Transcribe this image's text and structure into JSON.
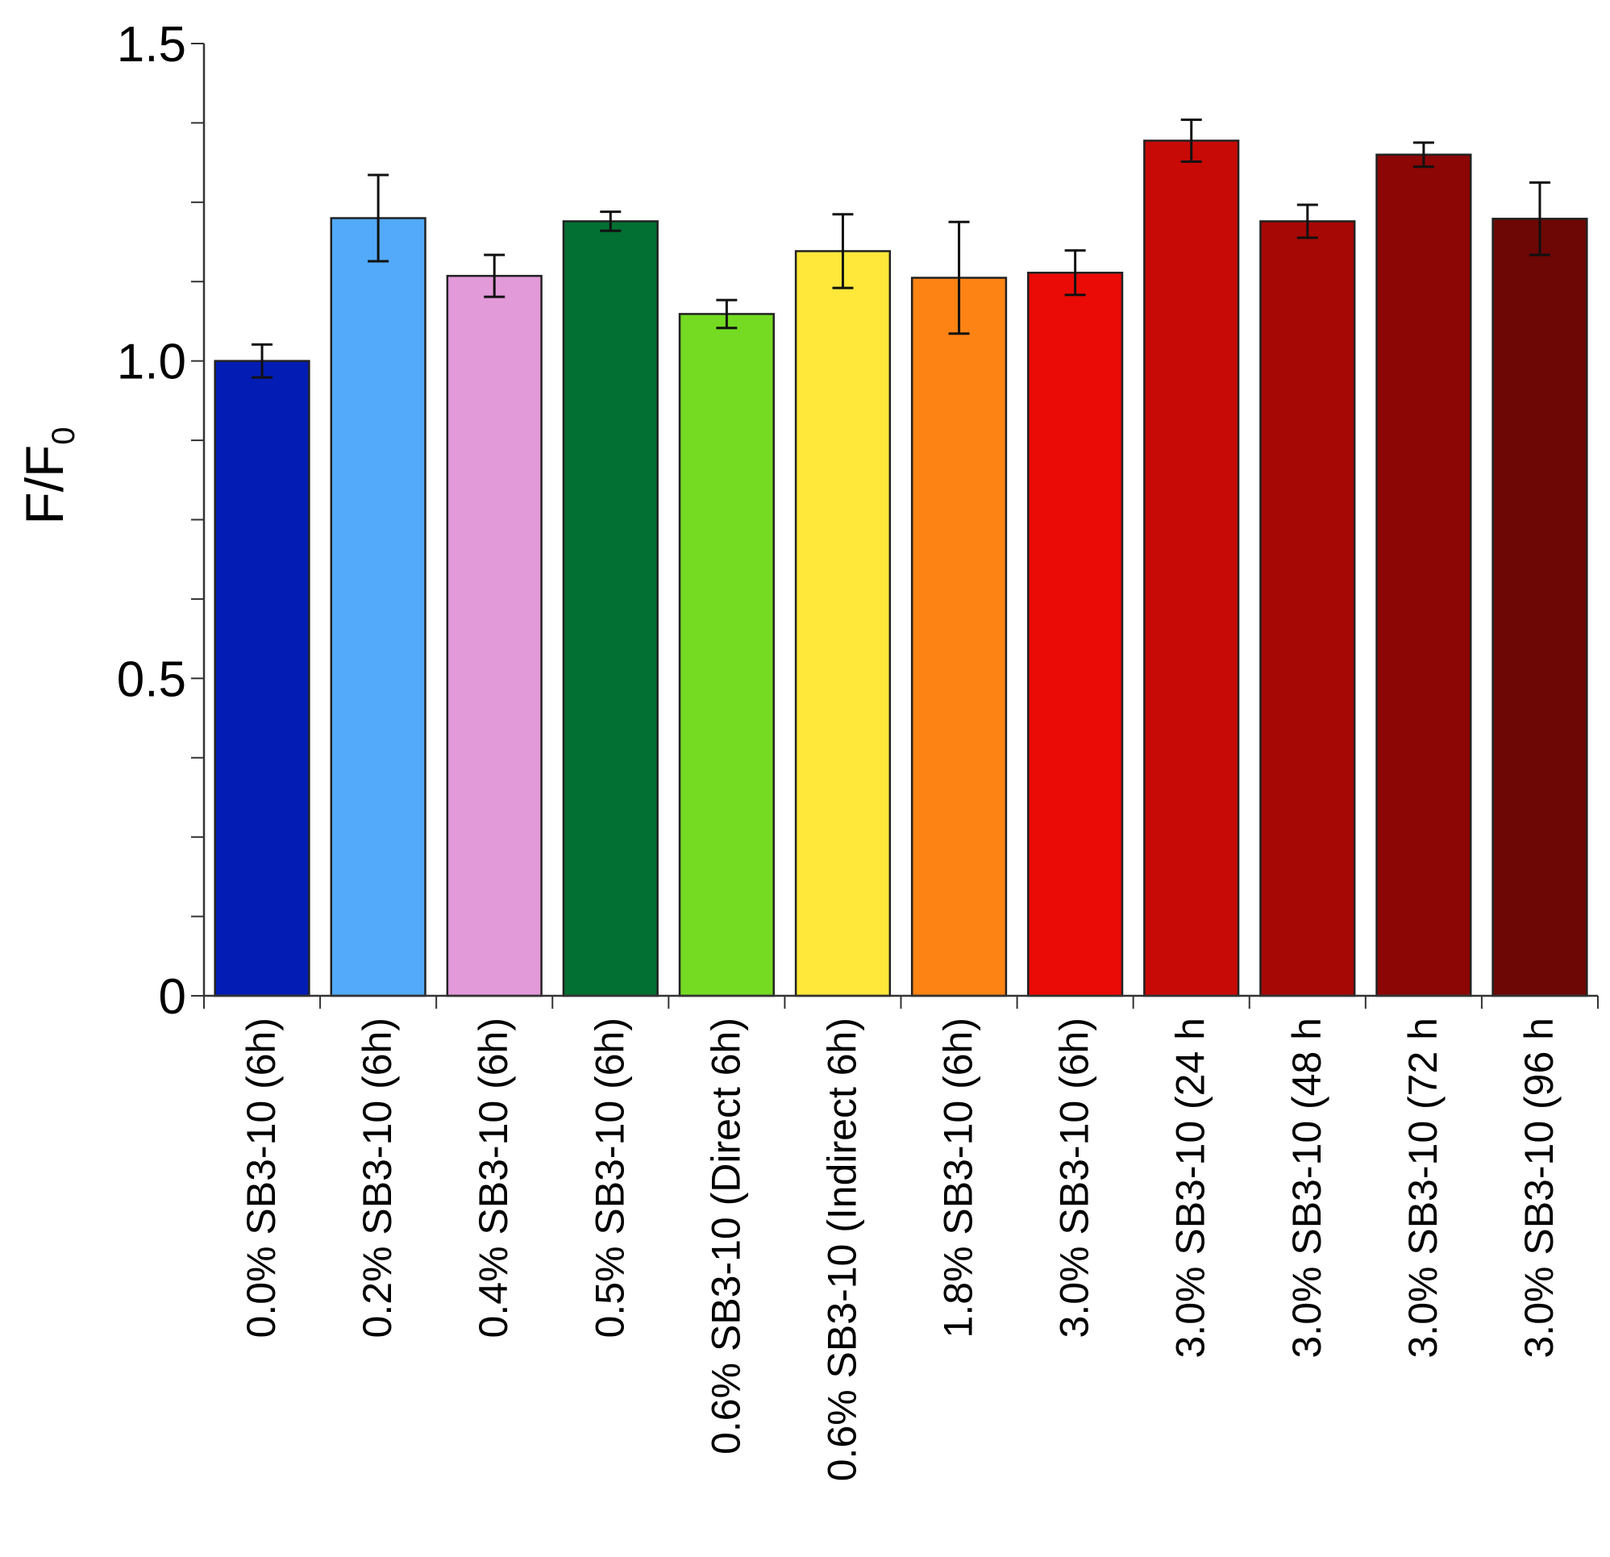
{
  "chart_data": {
    "type": "bar",
    "title": "",
    "xlabel": "",
    "ylabel": "F/F",
    "ylabel_subscript": "0",
    "ylim": [
      0,
      1.5
    ],
    "yticks": [
      0,
      0.5,
      1.0,
      1.5
    ],
    "ytick_labels": [
      "0",
      "0.5",
      "1.0",
      "1.5"
    ],
    "minor_tick_step": 0.125,
    "grid": false,
    "categories": [
      "0.0% SB3-10 (6h)",
      "0.2% SB3-10 (6h)",
      "0.4% SB3-10 (6h)",
      "0.5% SB3-10 (6h)",
      "0.6% SB3-10 (Direct 6h)",
      "0.6% SB3-10 (Indirect 6h)",
      "1.8% SB3-10 (6h)",
      "3.0% SB3-10 (6h)",
      "3.0% SB3-10 (24 h",
      "3.0% SB3-10 (48 h",
      "3.0% SB3-10 (72 h",
      "3.0% SB3-10 (96 h"
    ],
    "values": [
      1.0,
      1.225,
      1.134,
      1.22,
      1.074,
      1.173,
      1.131,
      1.139,
      1.347,
      1.22,
      1.325,
      1.224
    ],
    "errors": [
      0.026,
      0.068,
      0.033,
      0.015,
      0.022,
      0.058,
      0.088,
      0.035,
      0.033,
      0.026,
      0.019,
      0.057
    ],
    "colors": [
      "#031CB3",
      "#53AAFB",
      "#E29AD9",
      "#026F33",
      "#74DB22",
      "#FFE83A",
      "#FD8314",
      "#EA0A06",
      "#C80A07",
      "#A60806",
      "#8B0605",
      "#6C0705"
    ]
  }
}
